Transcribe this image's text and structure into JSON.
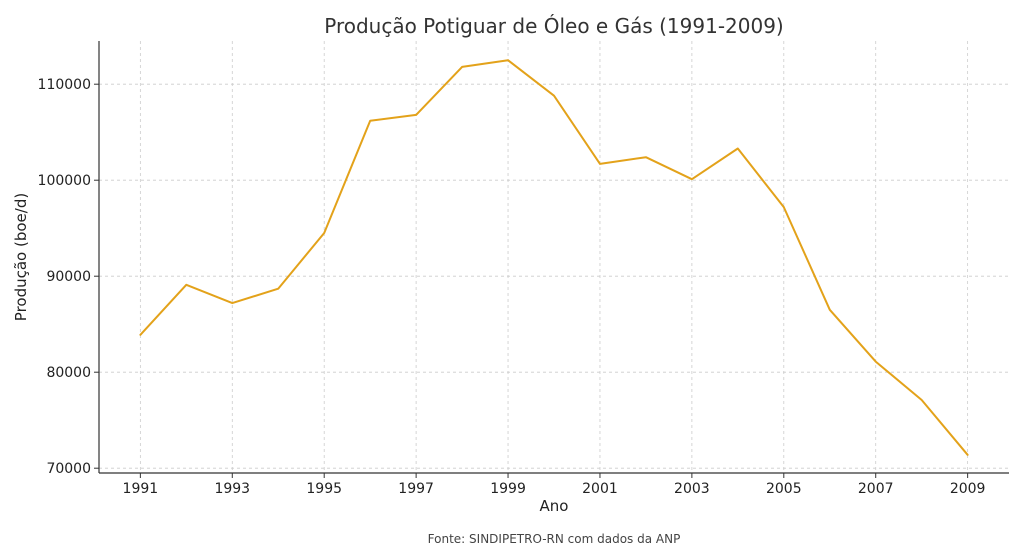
{
  "chart_data": {
    "type": "line",
    "title": "Produção Potiguar de Óleo e Gás (1991-2009)",
    "xlabel": "Ano",
    "ylabel": "Produção (boe/d)",
    "source_note": "Fonte: SINDIPETRO-RN com dados da ANP",
    "x": [
      1991,
      1992,
      1993,
      1994,
      1995,
      1996,
      1997,
      1998,
      1999,
      2000,
      2001,
      2002,
      2003,
      2004,
      2005,
      2006,
      2007,
      2008,
      2009
    ],
    "series": [
      {
        "values": [
          83900,
          89100,
          87200,
          88700,
          94500,
          106200,
          106800,
          111800,
          112500,
          108800,
          101700,
          102400,
          100100,
          103300,
          97200,
          86500,
          81100,
          77100,
          71400
        ],
        "color": "#e3a21a"
      }
    ],
    "xlim": [
      1990.1,
      2009.9
    ],
    "ylim": [
      69500,
      114500
    ],
    "xticks": [
      1991,
      1993,
      1995,
      1997,
      1999,
      2001,
      2003,
      2005,
      2007,
      2009
    ],
    "xtick_labels": [
      "1991",
      "1993",
      "1995",
      "1997",
      "1999",
      "2001",
      "2003",
      "2005",
      "2007",
      "2009"
    ],
    "yticks": [
      70000,
      80000,
      90000,
      100000,
      110000
    ],
    "ytick_labels": [
      "70000",
      "80000",
      "90000",
      "100000",
      "110000"
    ],
    "grid": true,
    "legend": "none"
  }
}
